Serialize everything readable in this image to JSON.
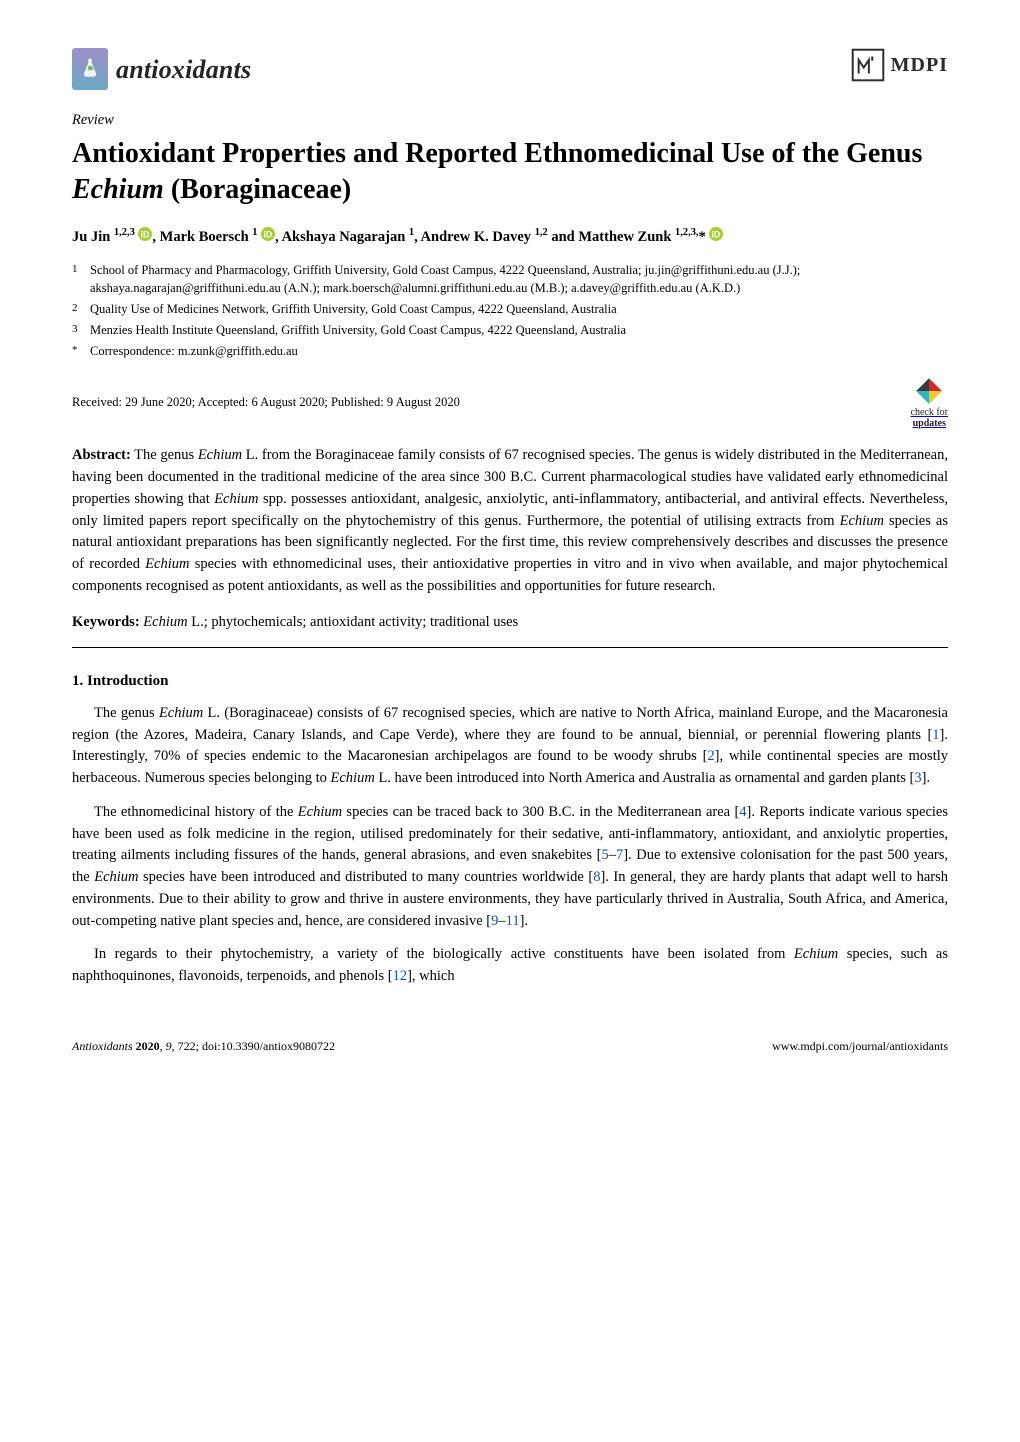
{
  "colors": {
    "background": "#ffffff",
    "text": "#000000",
    "ref_link": "#1a4f9c",
    "logo_gradient_top": "#9c8fc7",
    "logo_gradient_bottom": "#6da8c5",
    "orcid_green": "#a6ce39",
    "mdpi_frame": "#2b2b2b",
    "check_red": "#d7282f",
    "check_cyan": "#2eb5c0",
    "check_yellow": "#f3c728",
    "check_dark": "#3a3a3a"
  },
  "typography": {
    "body_font": "Palatino Linotype",
    "title_fontsize_pt": 21,
    "body_fontsize_pt": 11,
    "affil_fontsize_pt": 9.5,
    "footer_fontsize_pt": 9
  },
  "journal": {
    "logo_text": "antioxidants"
  },
  "publisher": {
    "name": "MDPI"
  },
  "article": {
    "type": "Review",
    "title_prefix": "Antioxidant Properties and Reported Ethnomedicinal Use of the Genus ",
    "title_genus": "Echium",
    "title_suffix": " (Boraginaceae)",
    "authors_html": "Ju Jin <sup>1,2,3</sup> {ORCID}, Mark Boersch <sup>1</sup> {ORCID}, Akshaya Nagarajan <sup>1</sup>, Andrew K. Davey <sup>1,2</sup> and Matthew Zunk <sup>1,2,3,</sup>* {ORCID}"
  },
  "affiliations": {
    "a1": "School of Pharmacy and Pharmacology, Griffith University, Gold Coast Campus, 4222 Queensland, Australia; ju.jin@griffithuni.edu.au (J.J.); akshaya.nagarajan@griffithuni.edu.au (A.N.); mark.boersch@alumni.griffithuni.edu.au (M.B.); a.davey@griffith.edu.au (A.K.D.)",
    "a2": "Quality Use of Medicines Network, Griffith University, Gold Coast Campus, 4222 Queensland, Australia",
    "a3": "Menzies Health Institute Queensland, Griffith University, Gold Coast Campus, 4222 Queensland, Australia",
    "corr": "Correspondence: m.zunk@griffith.edu.au"
  },
  "dates": "Received: 29 June 2020; Accepted: 6 August 2020; Published: 9 August 2020",
  "check_updates": {
    "line1": "check for",
    "line2": "updates"
  },
  "abstract": {
    "label": "Abstract:",
    "text_parts": [
      "The genus ",
      "Echium",
      " L. from the Boraginaceae family consists of 67 recognised species. The genus is widely distributed in the Mediterranean, having been documented in the traditional medicine of the area since 300 B.C. Current pharmacological studies have validated early ethnomedicinal properties showing that ",
      "Echium",
      " spp. possesses antioxidant, analgesic, anxiolytic, anti-inflammatory, antibacterial, and antiviral effects. Nevertheless, only limited papers report specifically on the phytochemistry of this genus. Furthermore, the potential of utilising extracts from ",
      "Echium",
      " species as natural antioxidant preparations has been significantly neglected. For the first time, this review comprehensively describes and discusses the presence of recorded ",
      "Echium",
      " species with ethnomedicinal uses, their antioxidative properties in vitro and in vivo when available, and major phytochemical components recognised as potent antioxidants, as well as the possibilities and opportunities for future research."
    ]
  },
  "keywords": {
    "label": "Keywords:",
    "text_parts": [
      "Echium",
      " L.; phytochemicals; antioxidant activity; traditional uses"
    ]
  },
  "section1": {
    "heading": "1. Introduction"
  },
  "paragraphs": {
    "p1": {
      "segments": [
        {
          "t": "The genus "
        },
        {
          "t": "Echium",
          "i": true
        },
        {
          "t": " L. (Boraginaceae) consists of 67 recognised species, which are native to North Africa, mainland Europe, and the Macaronesia region (the Azores, Madeira, Canary Islands, and Cape Verde), where they are found to be annual, biennial, or perennial flowering plants ["
        },
        {
          "t": "1",
          "ref": true
        },
        {
          "t": "]. Interestingly, 70% of species endemic to the Macaronesian archipelagos are found to be woody shrubs ["
        },
        {
          "t": "2",
          "ref": true
        },
        {
          "t": "], while continental species are mostly herbaceous. Numerous species belonging to "
        },
        {
          "t": "Echium",
          "i": true
        },
        {
          "t": " L. have been introduced into North America and Australia as ornamental and garden plants ["
        },
        {
          "t": "3",
          "ref": true
        },
        {
          "t": "]."
        }
      ]
    },
    "p2": {
      "segments": [
        {
          "t": "The ethnomedicinal history of the "
        },
        {
          "t": "Echium",
          "i": true
        },
        {
          "t": " species can be traced back to 300 B.C. in the Mediterranean area ["
        },
        {
          "t": "4",
          "ref": true
        },
        {
          "t": "]. Reports indicate various species have been used as folk medicine in the region, utilised predominately for their sedative, anti-inflammatory, antioxidant, and anxiolytic properties, treating ailments including fissures of the hands, general abrasions, and even snakebites ["
        },
        {
          "t": "5",
          "ref": true
        },
        {
          "t": "–"
        },
        {
          "t": "7",
          "ref": true
        },
        {
          "t": "]. Due to extensive colonisation for the past 500 years, the "
        },
        {
          "t": "Echium",
          "i": true
        },
        {
          "t": " species have been introduced and distributed to many countries worldwide ["
        },
        {
          "t": "8",
          "ref": true
        },
        {
          "t": "]. In general, they are hardy plants that adapt well to harsh environments. Due to their ability to grow and thrive in austere environments, they have particularly thrived in Australia, South Africa, and America, out-competing native plant species and, hence, are considered invasive ["
        },
        {
          "t": "9",
          "ref": true
        },
        {
          "t": "–"
        },
        {
          "t": "11",
          "ref": true
        },
        {
          "t": "]."
        }
      ]
    },
    "p3": {
      "segments": [
        {
          "t": "In regards to their phytochemistry, a variety of the biologically active constituents have been isolated from "
        },
        {
          "t": "Echium",
          "i": true
        },
        {
          "t": " species, such as naphthoquinones, flavonoids, terpenoids, and phenols ["
        },
        {
          "t": "12",
          "ref": true
        },
        {
          "t": "], which"
        }
      ]
    }
  },
  "footer": {
    "left_parts": [
      "Antioxidants ",
      "2020",
      ", ",
      "9",
      ", 722; doi:10.3390/antiox9080722"
    ],
    "right": "www.mdpi.com/journal/antioxidants"
  }
}
